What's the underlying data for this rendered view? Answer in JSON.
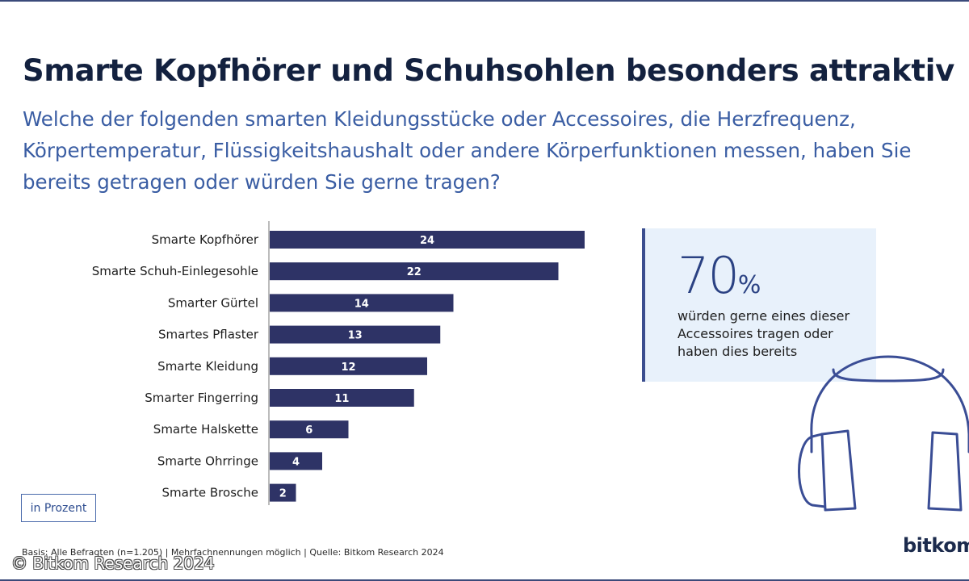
{
  "title": "Smarte Kopfhörer und Schuhsohlen besonders attraktiv",
  "subtitle": "Welche der folgenden smarten Kleidungsstücke oder Accessoires, die Herzfrequenz, Körpertemperatur, Flüssigkeitshaushalt oder andere Körperfunktionen messen, haben Sie bereits getragen oder würden Sie gerne tragen?",
  "unit_label": "in Prozent",
  "chart_data": {
    "type": "bar",
    "orientation": "horizontal",
    "title": "",
    "xlabel": "",
    "ylabel": "",
    "categories": [
      "Smarte Kopfhörer",
      "Smarte Schuh-Einlegesohle",
      "Smarter Gürtel",
      "Smartes Pflaster",
      "Smarte Kleidung",
      "Smarter Fingerring",
      "Smarte Halskette",
      "Smarte Ohrringe",
      "Smarte Brosche"
    ],
    "values": [
      24,
      22,
      14,
      13,
      12,
      11,
      6,
      4,
      2
    ],
    "xlim": [
      0,
      24
    ],
    "grid": false,
    "data_labels": true,
    "bar_color": "#2e3366"
  },
  "stat": {
    "value": "70",
    "unit": "%",
    "text": "würden gerne eines dieser Accessoires tragen oder haben dies bereits"
  },
  "footer": {
    "source": "Basis: Alle Befragten (n=1.205) | Mehrfachnennungen möglich | Quelle: Bitkom Research 2024",
    "copyright": "© Bitkom Research 2024",
    "logo": "bitkom"
  },
  "decoration": {
    "icon": "headphones-icon",
    "color": "#3a4d95"
  }
}
